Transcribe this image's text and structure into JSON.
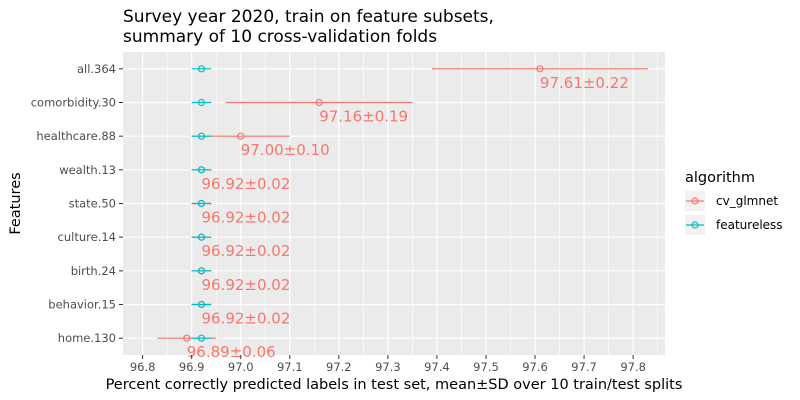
{
  "chart_data": {
    "type": "scatter",
    "title_lines": [
      "Survey year 2020, train on feature subsets,",
      "summary of 10 cross-validation folds"
    ],
    "xlabel": "Percent correctly predicted labels in test set, mean±SD over 10 train/test splits",
    "ylabel": "Features",
    "xlim": [
      96.76,
      97.865
    ],
    "xticks": [
      "96.8",
      "96.9",
      "97.0",
      "97.1",
      "97.2",
      "97.3",
      "97.4",
      "97.5",
      "97.6",
      "97.7",
      "97.8"
    ],
    "categories": [
      "all.364",
      "comorbidity.30",
      "healthcare.88",
      "wealth.13",
      "state.50",
      "culture.14",
      "birth.24",
      "behavior.15",
      "home.130"
    ],
    "legend": {
      "title": "algorithm",
      "position": "right",
      "entries": [
        "cv_glmnet",
        "featureless"
      ]
    },
    "series": [
      {
        "name": "cv_glmnet",
        "color": "#F8766D",
        "mean": [
          97.61,
          97.16,
          97.0,
          96.92,
          96.92,
          96.92,
          96.92,
          96.92,
          96.89
        ],
        "sd": [
          0.22,
          0.19,
          0.1,
          0.02,
          0.02,
          0.02,
          0.02,
          0.02,
          0.06
        ],
        "labels": [
          "97.61±0.22",
          "97.16±0.19",
          "97.00±0.10",
          "96.92±0.02",
          "96.92±0.02",
          "96.92±0.02",
          "96.92±0.02",
          "96.92±0.02",
          "96.89±0.06"
        ]
      },
      {
        "name": "featureless",
        "color": "#00BFC4",
        "mean": [
          96.92,
          96.92,
          96.92,
          96.92,
          96.92,
          96.92,
          96.92,
          96.92,
          96.92
        ],
        "sd": [
          0.02,
          0.02,
          0.02,
          0.02,
          0.02,
          0.02,
          0.02,
          0.02,
          0.02
        ]
      }
    ],
    "grid": true,
    "panel_background": "#EBEBEB"
  }
}
